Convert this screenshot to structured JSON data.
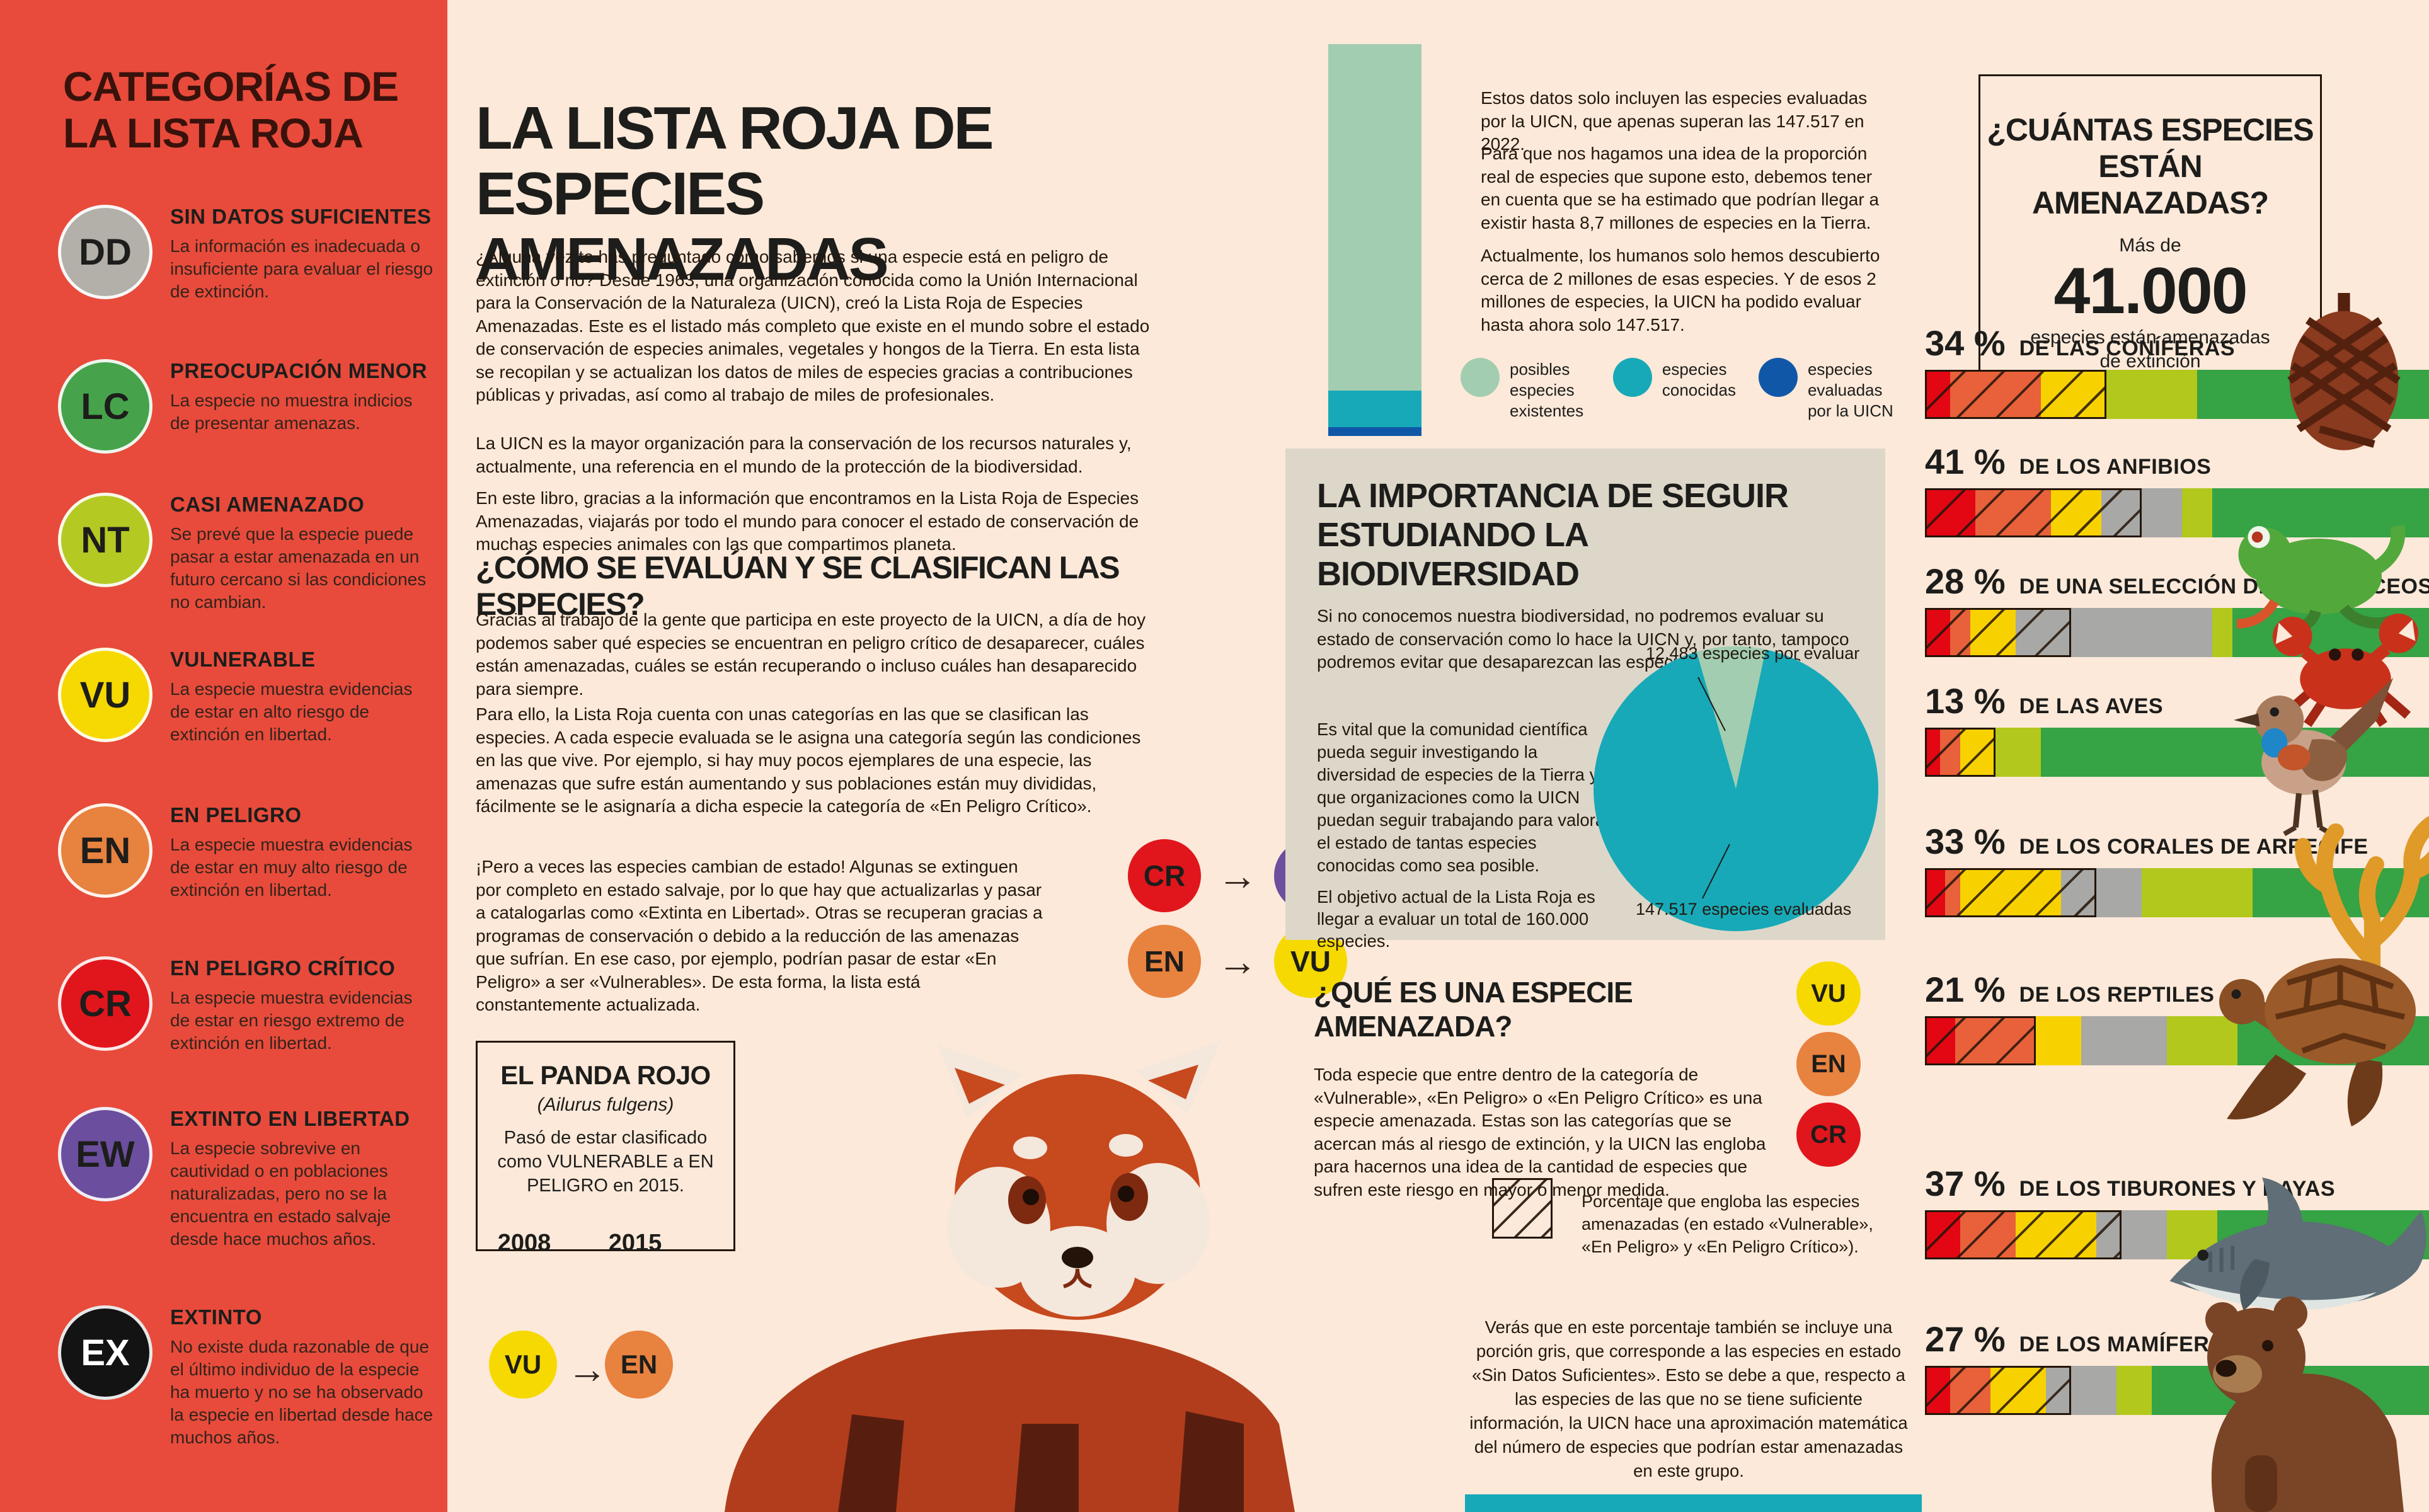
{
  "sidebar": {
    "title": "CATEGORÍAS DE LA LISTA ROJA",
    "categories": [
      {
        "code": "DD",
        "color": "#b3afa9",
        "text_color": "#1d1d1b",
        "name": "SIN DATOS SUFICIENTES",
        "desc": "La información es inadecuada o insuficiente para evaluar el riesgo de extinción."
      },
      {
        "code": "LC",
        "color": "#46a34b",
        "text_color": "#1d1d1b",
        "name": "PREOCUPACIÓN MENOR",
        "desc": "La especie no muestra indicios de presentar amenazas."
      },
      {
        "code": "NT",
        "color": "#b5c923",
        "text_color": "#1d1d1b",
        "name": "CASI AMENAZADO",
        "desc": "Se prevé que la especie puede pasar a estar amenazada en un futuro cercano si las condiciones no cambian."
      },
      {
        "code": "VU",
        "color": "#f6d900",
        "text_color": "#1d1d1b",
        "name": "VULNERABLE",
        "desc": "La especie muestra evidencias de estar en alto riesgo de extinción en libertad."
      },
      {
        "code": "EN",
        "color": "#e8823f",
        "text_color": "#1d1d1b",
        "name": "EN PELIGRO",
        "desc": "La especie muestra evidencias de estar en muy alto riesgo de extinción en libertad."
      },
      {
        "code": "CR",
        "color": "#e1161c",
        "text_color": "#1d1d1b",
        "name": "EN PELIGRO CRÍTICO",
        "desc": "La especie muestra evidencias de estar en riesgo extremo de extinción en libertad."
      },
      {
        "code": "EW",
        "color": "#6b4e9e",
        "text_color": "#1d1d1b",
        "name": "EXTINTO EN LIBERTAD",
        "desc": "La especie sobrevive en cautividad o en poblaciones naturalizadas, pero no se la encuentra en estado salvaje desde hace muchos años."
      },
      {
        "code": "EX",
        "color": "#131313",
        "text_color": "#ffffff",
        "name": "EXTINTO",
        "desc": "No existe duda razonable de que el último individuo de la especie ha muerto y no se ha observado la especie en libertad desde hace muchos años."
      }
    ]
  },
  "main": {
    "title": "LA LISTA ROJA DE ESPECIES AMENAZADAS",
    "intro1": "¿Alguna vez te has preguntado cómo sabemos si una especie está en peligro de extinción o no? Desde 1963, una organización conocida como la Unión Internacional para la Conservación de la Naturaleza (UICN), creó la Lista Roja de Especies Amenazadas. Este es el listado más completo que existe en el mundo sobre el estado de conservación de especies animales, vegetales y hongos de la Tierra. En esta lista se recopilan y se actualizan los datos de miles de especies gracias a contribuciones públicas y privadas, así como al trabajo de miles de profesionales.",
    "intro2": "La UICN es la mayor organización para la conservación de los recursos naturales y, actualmente, una referencia en el mundo de la protección de la biodiversidad.",
    "intro3": "En este libro, gracias a la información que encontramos en la Lista Roja de Especies Amenazadas, viajarás por todo el mundo para conocer el estado de conservación de muchas especies animales con las que compartimos planeta.",
    "how_title": "¿CÓMO SE EVALÚAN Y SE CLASIFICAN LAS ESPECIES?",
    "how1": "Gracias al trabajo de la gente que participa en este proyecto de la UICN, a día de hoy podemos saber qué especies se encuentran en peligro crítico de desaparecer, cuáles están amenazadas, cuáles se están recuperando o incluso cuáles han desaparecido para siempre.",
    "how2": "Para ello, la Lista Roja cuenta con unas categorías en las que se clasifican las especies. A cada especie evaluada se le asigna una categoría según las condiciones en las que vive. Por ejemplo, si hay muy pocos ejemplares de una especie, las amenazas que sufre están aumentando y sus poblaciones están muy divididas, fácilmente se le asignaría a dicha especie la categoría de «En Peligro Crítico».",
    "change": "¡Pero a veces las especies cambian de estado! Algunas se extinguen por completo en estado salvaje, por lo que hay que actualizarlas y pasar a catalogarlas como «Extinta en Libertad». Otras se recuperan gracias a programas de conservación o debido a la reducción de las amenazas que sufrían. En ese caso, por ejemplo, podrían pasar de estar «En Peligro» a ser «Vulnerables». De esta forma, la lista está constantemente actualizada.",
    "transitions": [
      {
        "from": "CR",
        "to": "EW"
      },
      {
        "from": "EN",
        "to": "VU"
      }
    ],
    "arrow": "→",
    "panda": {
      "title": "EL PANDA ROJO",
      "sci": "(Ailurus fulgens)",
      "desc": "Pasó de estar clasificado como VULNERABLE a EN PELIGRO en 2015.",
      "year_from": "2008",
      "year_to": "2015",
      "from": "VU",
      "to": "EN"
    }
  },
  "middle": {
    "note1": "Estos datos solo incluyen las especies evaluadas por la UICN, que apenas superan las 147.517 en 2022.",
    "note2": "Para que nos hagamos una idea de la proporción real de especies que supone esto, debemos tener en cuenta que se ha estimado que podrían llegar a existir hasta 8,7 millones de especies en la Tierra.",
    "note3": "Actualmente, los humanos solo hemos descubierto cerca de 2 millones de esas especies. Y de esos 2 millones de especies, la UICN ha podido evaluar hasta ahora solo 147.517.",
    "stack": {
      "segments": [
        {
          "label": "posibles especies existentes",
          "color": "#a3cdb0",
          "pct": 88.5
        },
        {
          "label": "especies conocidas",
          "color": "#17a9b8",
          "pct": 9.3
        },
        {
          "label": "especies evaluadas por la UICN",
          "color": "#1058a7",
          "pct": 2.2
        }
      ]
    },
    "importance": {
      "title": "LA IMPORTANCIA DE SEGUIR ESTUDIANDO LA BIODIVERSIDAD",
      "p1": "Si no conocemos nuestra biodiversidad, no podremos evaluar su estado de conservación como lo hace la UICN y, por tanto, tampoco podremos evitar que desaparezcan las especies amenazadas.",
      "p2": "Es vital que la comunidad científica pueda seguir investigando la diversidad de especies de la Tierra y que organizaciones como la UICN puedan seguir trabajando para valorar el estado de tantas especies conocidas como sea posible.",
      "p3": "El objetivo actual de la Lista Roja es llegar a evaluar un total de 160.000 especies."
    },
    "pie": {
      "remaining_pct": 7.8,
      "remaining_label": "12.483 especies por evaluar",
      "evaluated_label": "147.517 especies evaluadas",
      "evaluated_color": "#17a9b8",
      "remaining_color": "#a3cdb0"
    },
    "threatened": {
      "title": "¿QUÉ ES UNA ESPECIE AMENAZADA?",
      "para": "Toda especie que entre dentro de la categoría de «Vulnerable», «En Peligro» o «En Peligro Crítico» es una especie amenazada. Estas son las categorías que se acercan más al riesgo de extinción, y la UICN las engloba para hacernos una idea de la cantidad de especies que sufren este riesgo en mayor o menor medida.",
      "codes": [
        "VU",
        "EN",
        "CR"
      ]
    },
    "hatch_note": "Porcentaje que engloba las especies amenazadas (en estado «Vulnerable», «En Peligro» y «En Peligro Crítico»).",
    "gray_note": "Verás que en este porcentaje también se incluye una porción gris, que corresponde a las especies en estado «Sin Datos Suficientes». Esto se debe a que, respecto a las especies de las que no se tiene suficiente información, la UICN hace una aproximación matemática del número de especies que podrían estar amenazadas en este grupo."
  },
  "right": {
    "box": {
      "title": "¿CUÁNTAS ESPECIES ESTÁN AMENAZADAS?",
      "more": "Más de",
      "number": "41.000",
      "sub": "especies están amenazadas",
      "sub2": "de extinción"
    },
    "bars": [
      {
        "pct": "34 %",
        "label": "DE LAS CONÍFERAS",
        "icon": "pinecone-icon",
        "hatch": 36,
        "segments": [
          {
            "color": "red",
            "w": 5
          },
          {
            "color": "orange",
            "w": 18
          },
          {
            "color": "yellow",
            "w": 13
          },
          {
            "color": "yellowgreen",
            "w": 18
          },
          {
            "color": "green",
            "w": 46
          }
        ]
      },
      {
        "pct": "41 %",
        "label": "DE LOS ANFIBIOS",
        "icon": "frog-icon",
        "hatch": 43,
        "segments": [
          {
            "color": "red",
            "w": 10
          },
          {
            "color": "orange",
            "w": 15
          },
          {
            "color": "yellow",
            "w": 10
          },
          {
            "color": "gray",
            "w": 16
          },
          {
            "color": "yellowgreen",
            "w": 6
          },
          {
            "color": "green",
            "w": 43
          }
        ]
      },
      {
        "pct": "28 %",
        "label": "DE UNA SELECCIÓN DE CRUSTÁCEOS",
        "icon": "crab-icon",
        "hatch": 29,
        "segments": [
          {
            "color": "red",
            "w": 5
          },
          {
            "color": "orange",
            "w": 4
          },
          {
            "color": "yellow",
            "w": 9
          },
          {
            "color": "gray",
            "w": 39
          },
          {
            "color": "yellowgreen",
            "w": 4
          },
          {
            "color": "green",
            "w": 39
          }
        ]
      },
      {
        "pct": "13 %",
        "label": "DE LAS AVES",
        "icon": "bird-icon",
        "hatch": 14,
        "segments": [
          {
            "color": "red",
            "w": 3
          },
          {
            "color": "orange",
            "w": 4
          },
          {
            "color": "yellow",
            "w": 7
          },
          {
            "color": "yellowgreen",
            "w": 9
          },
          {
            "color": "green",
            "w": 77
          }
        ]
      },
      {
        "pct": "33 %",
        "label": "DE LOS CORALES DE ARRECIFE",
        "icon": "coral-icon",
        "hatch": 34,
        "segments": [
          {
            "color": "red",
            "w": 4
          },
          {
            "color": "orange",
            "w": 3
          },
          {
            "color": "yellow",
            "w": 20
          },
          {
            "color": "gray",
            "w": 16
          },
          {
            "color": "yellowgreen",
            "w": 22
          },
          {
            "color": "green",
            "w": 35
          }
        ]
      },
      {
        "pct": "21 %",
        "label": "DE LOS REPTILES",
        "icon": "turtle-icon",
        "hatch": 22,
        "segments": [
          {
            "color": "red",
            "w": 6
          },
          {
            "color": "orange",
            "w": 16
          },
          {
            "color": "yellow",
            "w": 9
          },
          {
            "color": "gray",
            "w": 17
          },
          {
            "color": "yellowgreen",
            "w": 14
          },
          {
            "color": "green",
            "w": 38
          }
        ]
      },
      {
        "pct": "37 %",
        "label": "DE LOS TIBURONES Y RAYAS",
        "icon": "shark-icon",
        "hatch": 39,
        "segments": [
          {
            "color": "red",
            "w": 7
          },
          {
            "color": "orange",
            "w": 11
          },
          {
            "color": "yellow",
            "w": 16
          },
          {
            "color": "gray",
            "w": 14
          },
          {
            "color": "yellowgreen",
            "w": 10
          },
          {
            "color": "green",
            "w": 42
          }
        ]
      },
      {
        "pct": "27 %",
        "label": "DE LOS MAMÍFEROS",
        "icon": "bear-icon",
        "hatch": 29,
        "segments": [
          {
            "color": "red",
            "w": 5
          },
          {
            "color": "orange",
            "w": 8
          },
          {
            "color": "yellow",
            "w": 11
          },
          {
            "color": "gray",
            "w": 14
          },
          {
            "color": "yellowgreen",
            "w": 7
          },
          {
            "color": "green",
            "w": 55
          }
        ]
      }
    ]
  },
  "colors": {
    "red": "#e30613",
    "orange": "#e8613a",
    "yellow": "#f8d200",
    "gray": "#a8a8a6",
    "yellowgreen": "#b2c81c",
    "green": "#36a345",
    "CR": "#e1161c",
    "EW": "#6b4e9e",
    "EN": "#e8823f",
    "VU": "#f6d900"
  }
}
